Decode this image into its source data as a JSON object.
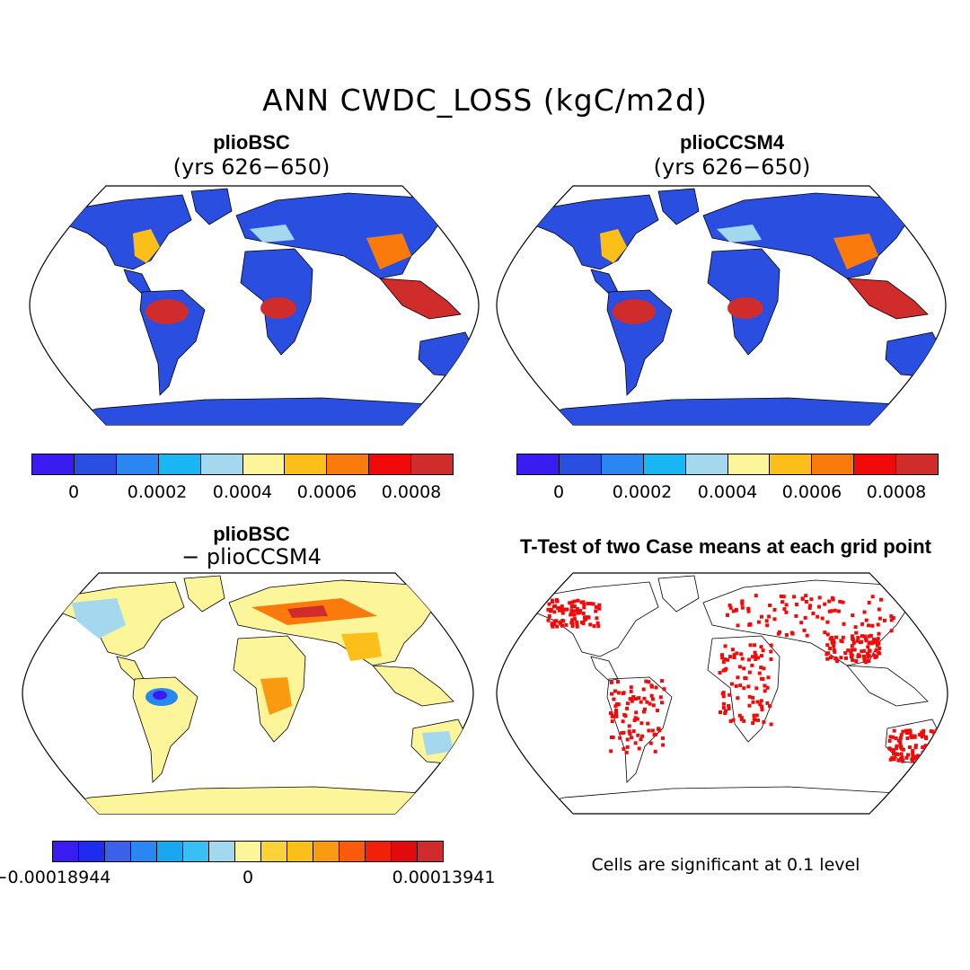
{
  "title": "ANN CWDC_LOSS (kgC/m2d)",
  "panels": {
    "top_left": {
      "title": "plioBSC",
      "subtitle": "(yrs 626−650)"
    },
    "top_right": {
      "title": "plioCCSM4",
      "subtitle": "(yrs 626−650)"
    },
    "bottom_left": {
      "title": "plioBSC",
      "subtitle": "− plioCCSM4"
    },
    "bottom_right": {
      "title": "T-Test of two Case means at each grid point",
      "note": "Cells are significant at 0.1 level"
    }
  },
  "colorbars": {
    "top": {
      "colors": [
        "#3a1bf0",
        "#2a4fe0",
        "#2a86f0",
        "#18b6f2",
        "#a4d8ee",
        "#fcf59a",
        "#fcbf1a",
        "#fa7a0c",
        "#f20a0a",
        "#d02c2c"
      ],
      "labels": [
        "0",
        "0.0002",
        "0.0004",
        "0.0006",
        "0.0008"
      ]
    },
    "bottom": {
      "colors": [
        "#3a1bf0",
        "#1f2cf0",
        "#3a62e8",
        "#2a86f0",
        "#18a8f2",
        "#38bff4",
        "#a4d8ee",
        "#fcf59a",
        "#fcd23a",
        "#fcbf1a",
        "#fa9a10",
        "#fa5a0c",
        "#f0200a",
        "#e20a0a",
        "#d02c2c"
      ],
      "labels": [
        "−0.00018944",
        "0",
        "0.00013941"
      ]
    }
  },
  "map_colors": {
    "land_top": "#2a4fe0",
    "tropics_high": "#d02c2c",
    "diff_base": "#fcf59a",
    "diff_blue": "#a4d8ee",
    "significant": "#f20a0a",
    "antarctica_top": "#2a4fe0"
  }
}
